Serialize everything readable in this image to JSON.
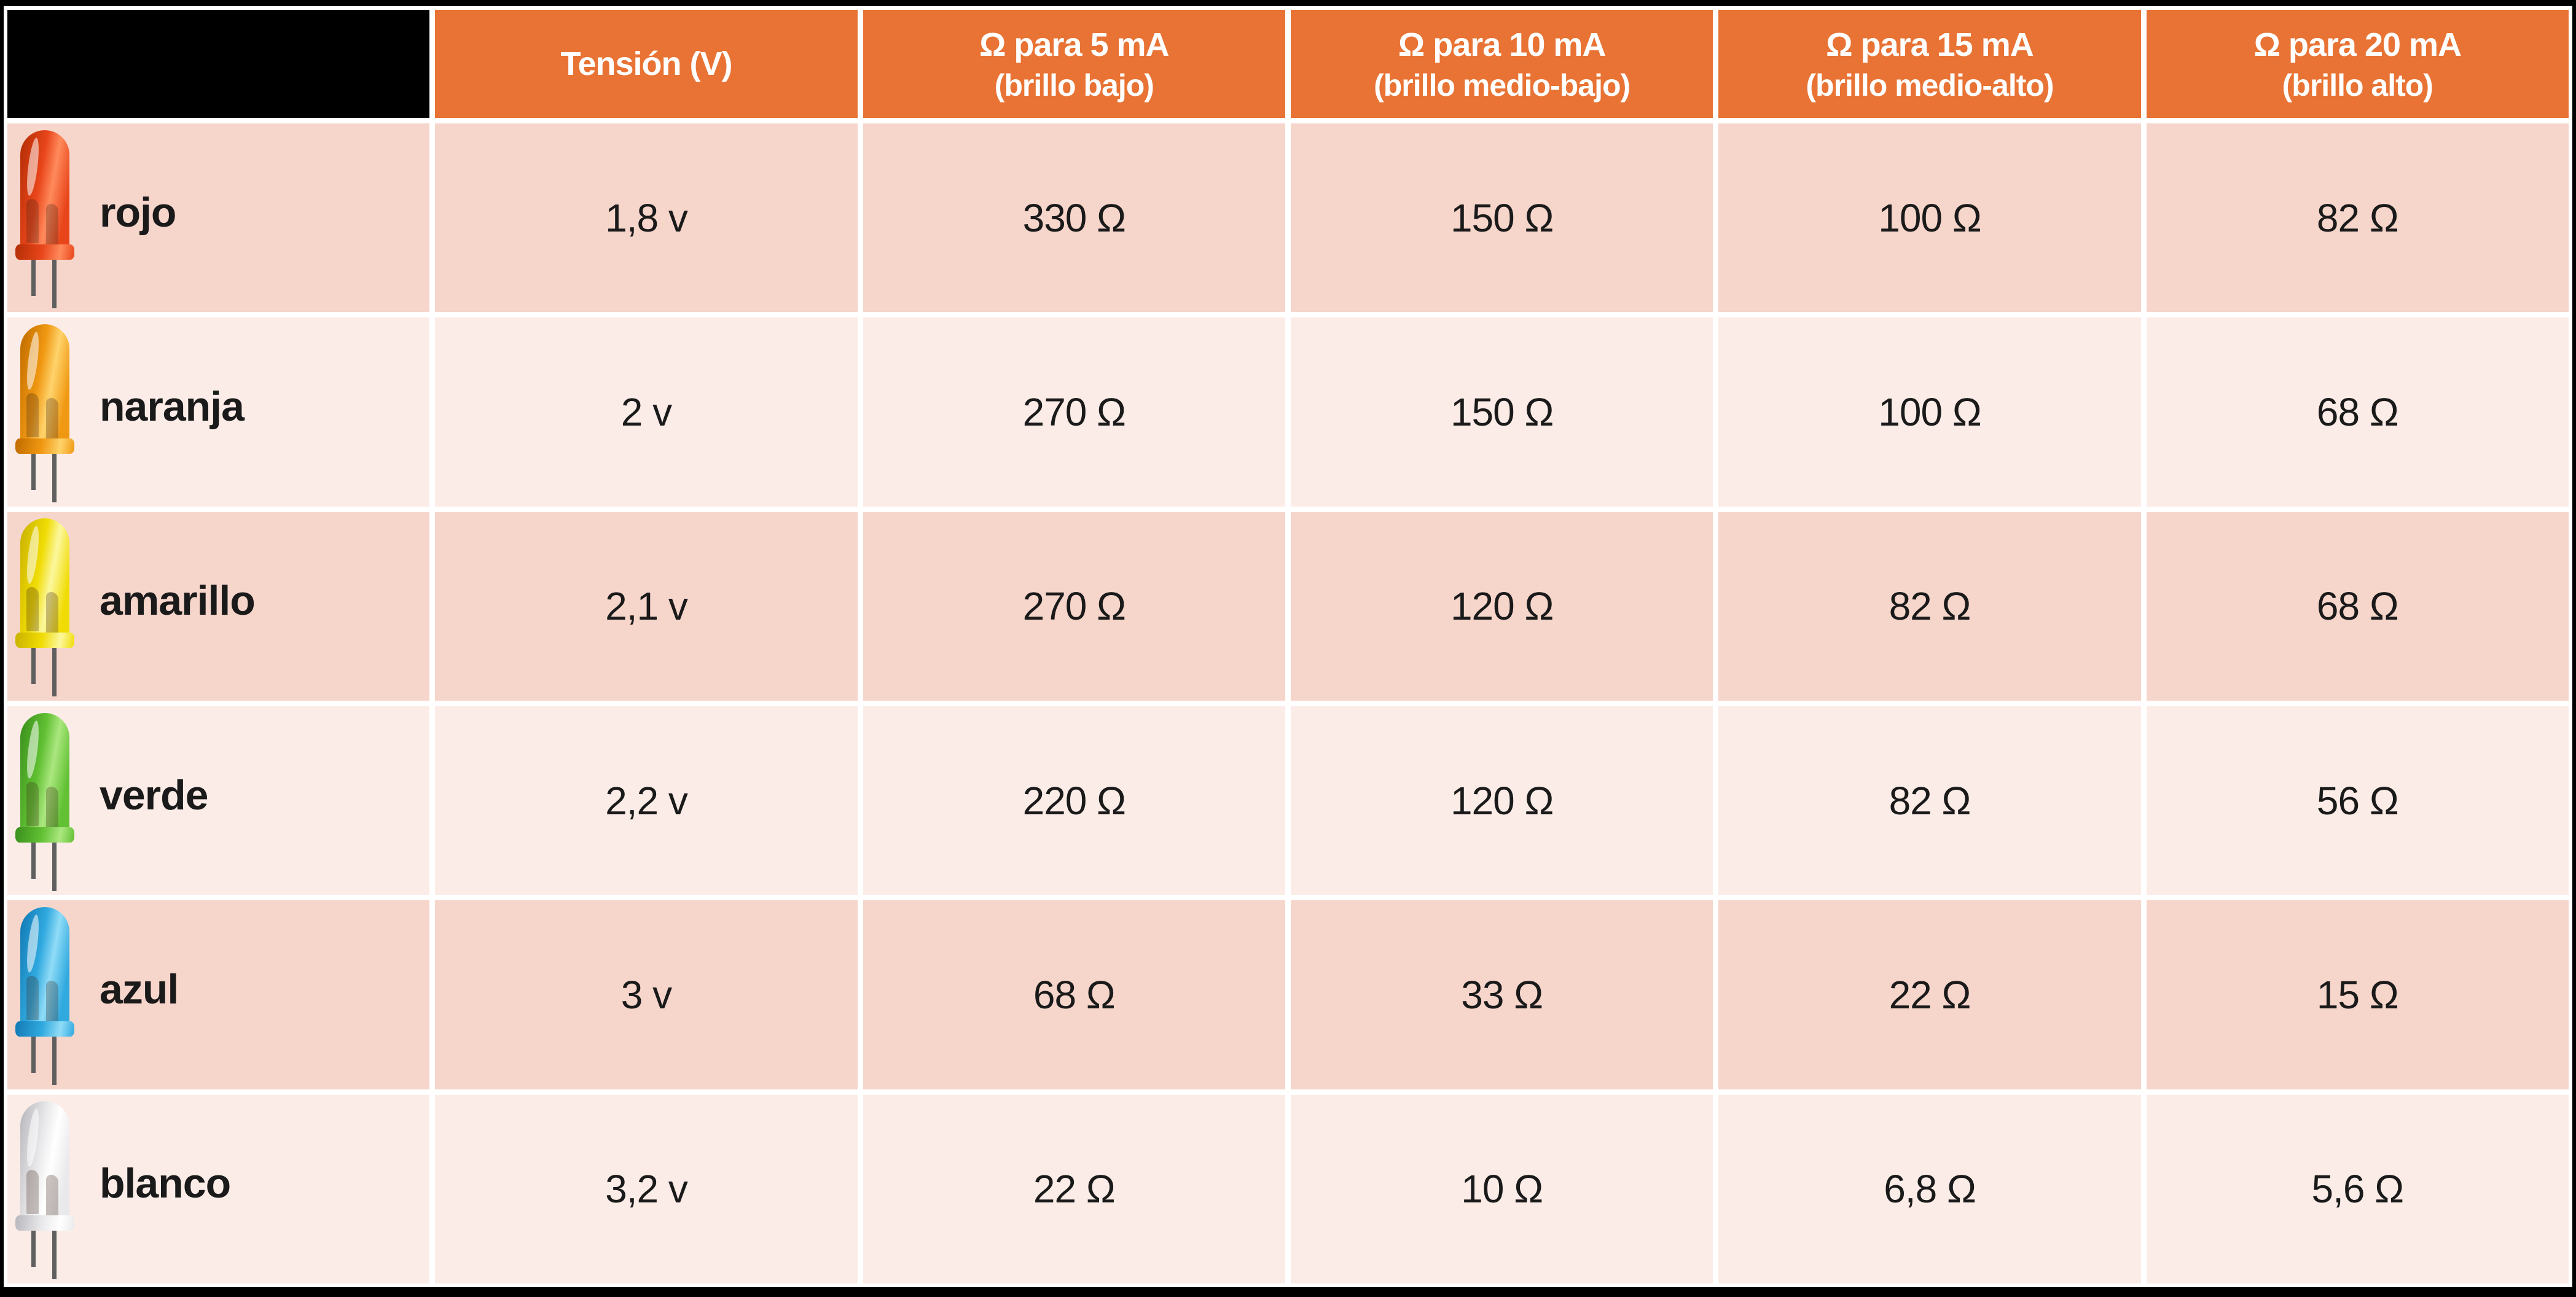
{
  "header": {
    "corner_label": "",
    "columns": [
      {
        "line1": "Tensión (V)",
        "line2": ""
      },
      {
        "line1": "Ω para 5 mA",
        "line2": "(brillo bajo)"
      },
      {
        "line1": "Ω para 10 mA",
        "line2": "(brillo medio-bajo)"
      },
      {
        "line1": "Ω para 15 mA",
        "line2": "(brillo medio-alto)"
      },
      {
        "line1": "Ω para 20 mA",
        "line2": "(brillo alto)"
      }
    ]
  },
  "rows": [
    {
      "label": "rojo",
      "icon": "led-red-icon",
      "tension": "1,8 v",
      "r5": "330 Ω",
      "r10": "150 Ω",
      "r15": "100 Ω",
      "r20": "82 Ω",
      "led": {
        "dark": "#B93008",
        "base": "#E8451A",
        "light": "#FF8A5C"
      }
    },
    {
      "label": "naranja",
      "icon": "led-orange-icon",
      "tension": "2 v",
      "r5": "270 Ω",
      "r10": "150 Ω",
      "r15": "100 Ω",
      "r20": "68 Ω",
      "led": {
        "dark": "#C57000",
        "base": "#F09812",
        "light": "#FFD36B"
      }
    },
    {
      "label": "amarillo",
      "icon": "led-yellow-icon",
      "tension": "2,1 v",
      "r5": "270 Ω",
      "r10": "120 Ω",
      "r15": "82 Ω",
      "r20": "68 Ω",
      "led": {
        "dark": "#CDB600",
        "base": "#F0DC04",
        "light": "#FCF79E"
      }
    },
    {
      "label": "verde",
      "icon": "led-green-icon",
      "tension": "2,2 v",
      "r5": "220 Ω",
      "r10": "120 Ω",
      "r15": "82 Ω",
      "r20": "56 Ω",
      "led": {
        "dark": "#3E941F",
        "base": "#61C033",
        "light": "#ABE77F"
      }
    },
    {
      "label": "azul",
      "icon": "led-blue-icon",
      "tension": "3 v",
      "r5": "68 Ω",
      "r10": "33 Ω",
      "r15": "22 Ω",
      "r20": "15 Ω",
      "led": {
        "dark": "#157EB8",
        "base": "#30A9DF",
        "light": "#90DCF7"
      }
    },
    {
      "label": "blanco",
      "icon": "led-white-icon",
      "tension": "3,2 v",
      "r5": "22 Ω",
      "r10": "10 Ω",
      "r15": "6,8 Ω",
      "r20": "5,6 Ω",
      "led": {
        "dark": "#BCBCC1",
        "base": "#E9E9EB",
        "light": "#FFFFFF"
      }
    }
  ],
  "colors": {
    "header_bg": "#E87334",
    "row_odd": "#F6D5CB",
    "row_even": "#FBECE7",
    "grid": "#FFFFFF",
    "frame": "#000000",
    "text": "#1A1A1A",
    "header_text": "#FFFFFF"
  }
}
